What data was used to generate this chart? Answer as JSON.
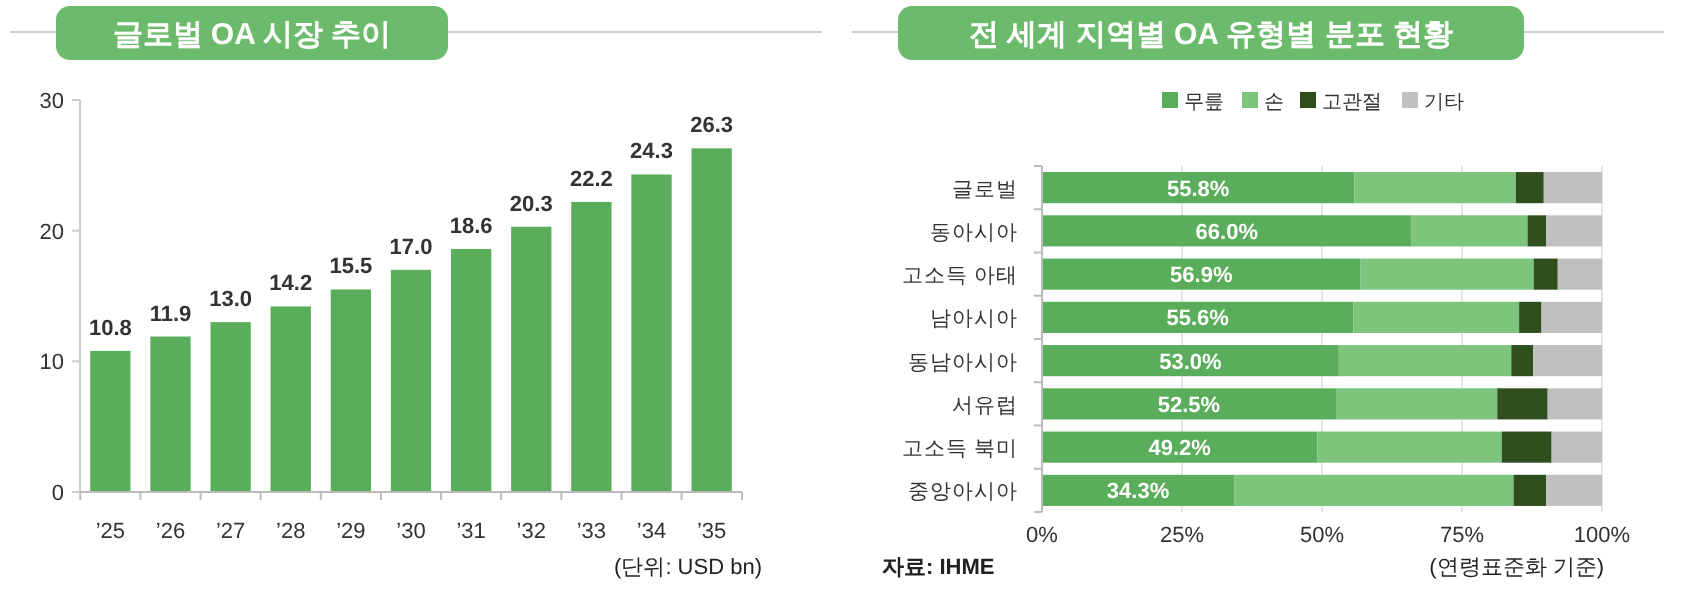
{
  "chart_data": [
    {
      "type": "bar",
      "title": "글로벌 OA 시장 추이",
      "categories": [
        "’25",
        "’26",
        "’27",
        "’28",
        "’29",
        "’30",
        "’31",
        "’32",
        "’33",
        "’34",
        "’35"
      ],
      "values": [
        10.8,
        11.9,
        13.0,
        14.2,
        15.5,
        17.0,
        18.6,
        20.3,
        22.2,
        24.3,
        26.3
      ],
      "value_labels": [
        "10.8",
        "11.9",
        "13.0",
        "14.2",
        "15.5",
        "17.0",
        "18.6",
        "20.3",
        "22.2",
        "24.3",
        "26.3"
      ],
      "color": "#5aad5a",
      "ylim": [
        0,
        30
      ],
      "yticks": [
        0,
        10,
        20,
        30
      ],
      "annotations": [
        "(단위: USD bn)"
      ]
    },
    {
      "type": "bar",
      "title": "전 세계 지역별 OA 유형별 분포 현황",
      "orientation": "horizontal",
      "stacked": true,
      "categories": [
        "글로벌",
        "동아시아",
        "고소득 아태",
        "남아시아",
        "동남아시아",
        "서유럽",
        "고소득 북미",
        "중앙아시아"
      ],
      "series": [
        {
          "name": "무릎",
          "color": "#5aad5a",
          "values": [
            55.8,
            66.0,
            56.9,
            55.6,
            53.0,
            52.5,
            49.2,
            34.3
          ],
          "value_labels": [
            "55.8%",
            "66.0%",
            "56.9%",
            "55.6%",
            "53.0%",
            "52.5%",
            "49.2%",
            "34.3%"
          ]
        },
        {
          "name": "손",
          "color": "#7dc47d",
          "values": [
            28.8,
            20.7,
            30.9,
            29.6,
            30.8,
            28.8,
            32.9,
            49.9
          ]
        },
        {
          "name": "고관절",
          "color": "#2f4f1f",
          "values": [
            5.0,
            3.3,
            4.3,
            4.0,
            3.9,
            9.0,
            8.9,
            5.8
          ]
        },
        {
          "name": "기타",
          "color": "#c0c0c0",
          "values": [
            10.4,
            10.0,
            7.9,
            10.8,
            12.3,
            9.7,
            9.0,
            10.0
          ]
        }
      ],
      "xlim": [
        0,
        100
      ],
      "xticks": [
        {
          "value": 0,
          "label": "0%"
        },
        {
          "value": 25,
          "label": "25%"
        },
        {
          "value": 50,
          "label": "50%"
        },
        {
          "value": 75,
          "label": "75%"
        },
        {
          "value": 100,
          "label": "100%"
        }
      ],
      "grid": "x",
      "legend": "top",
      "annotations": [
        "자료: IHME",
        "(연령표준화 기준)"
      ]
    }
  ]
}
